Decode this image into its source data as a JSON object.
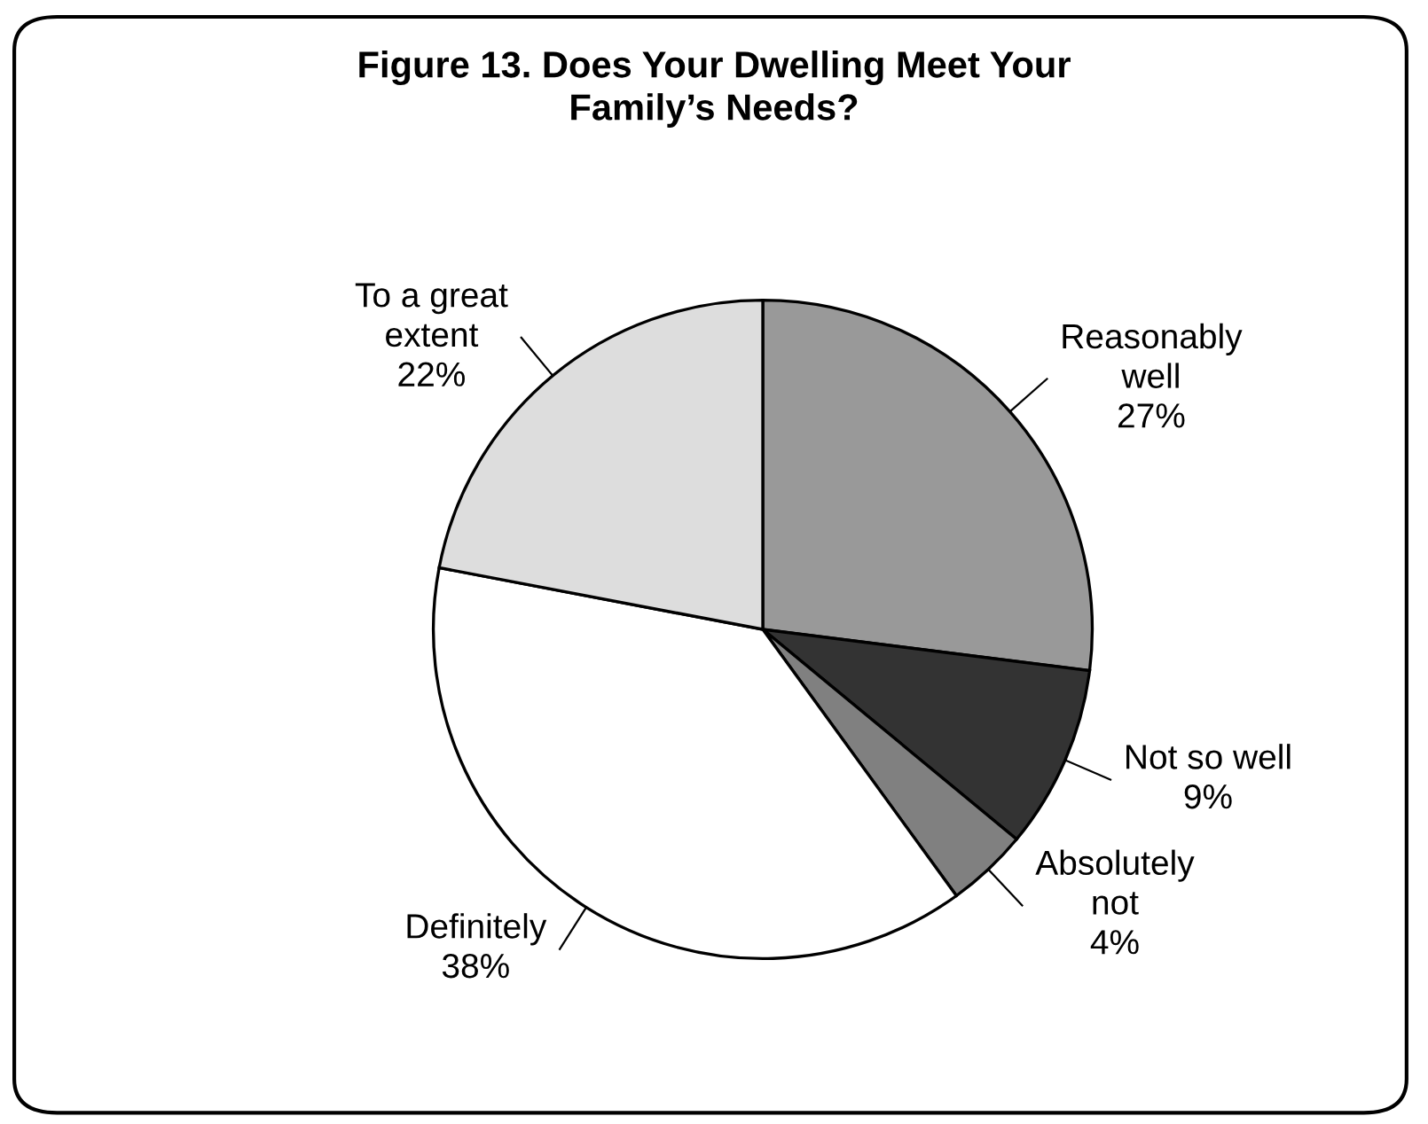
{
  "chart_data": {
    "type": "pie",
    "title": "Figure 13. Does Your Dwelling Meet Your\nFamily’s Needs?",
    "categories": [
      "Reasonably\nwell",
      "Not so well",
      "Absolutely\nnot",
      "Definitely",
      "To a great\nextent"
    ],
    "values": [
      27,
      9,
      4,
      38,
      22
    ],
    "value_labels": [
      "27%",
      "9%",
      "4%",
      "38%",
      "22%"
    ],
    "colors": [
      "#999999",
      "#333333",
      "#808080",
      "#ffffff",
      "#dddddd"
    ],
    "legend": false
  }
}
